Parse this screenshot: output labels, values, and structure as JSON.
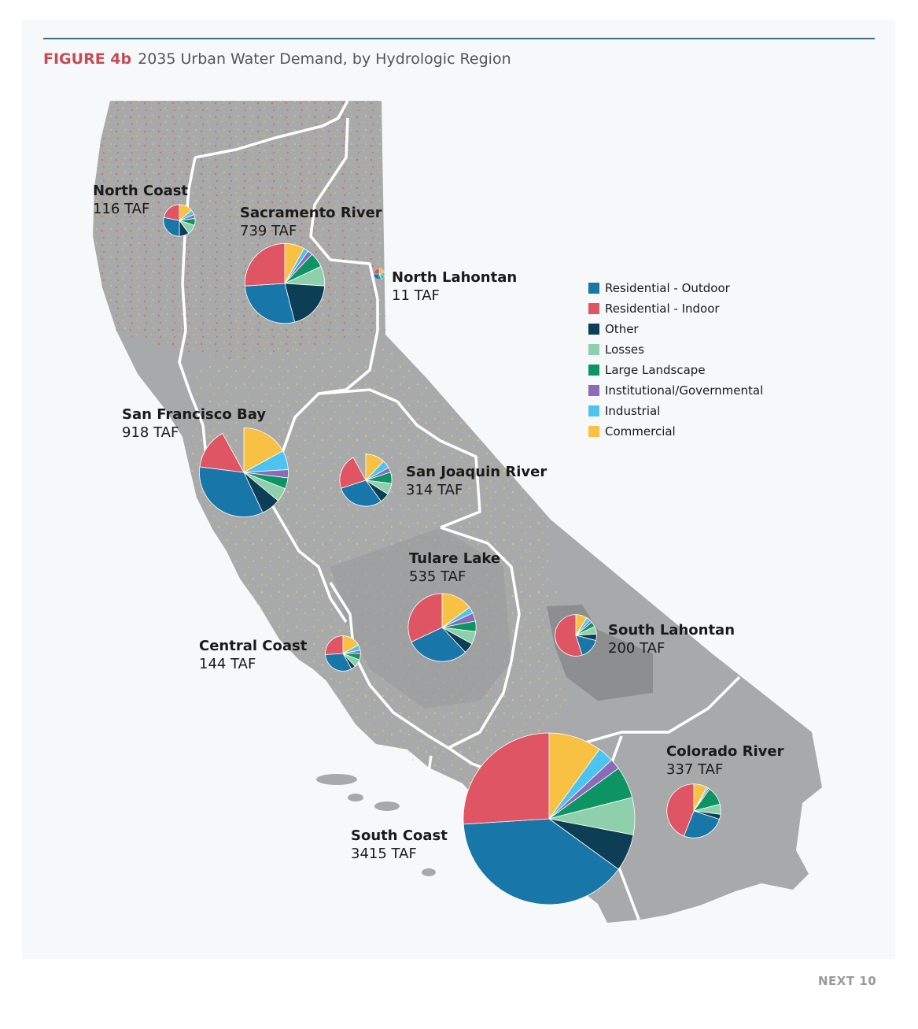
{
  "header": {
    "figure_number": "FIGURE 4b",
    "title": "2035 Urban Water Demand, by Hydrologic Region"
  },
  "footer": {
    "brand": "NEXT 10"
  },
  "legend": {
    "items": [
      {
        "label": "Residential - Outdoor",
        "color": "#1976a8"
      },
      {
        "label": "Residential - Indoor",
        "color": "#e05563"
      },
      {
        "label": "Other",
        "color": "#0c3e55"
      },
      {
        "label": "Losses",
        "color": "#8fd0ac"
      },
      {
        "label": "Large Landscape",
        "color": "#0e9464"
      },
      {
        "label": "Institutional/Governmental",
        "color": "#8b6bb8"
      },
      {
        "label": "Industrial",
        "color": "#4cc4ef"
      },
      {
        "label": "Commercial",
        "color": "#f8c143"
      }
    ]
  },
  "regions": [
    {
      "id": "north-coast",
      "name": "North Coast",
      "demand": "116 TAF",
      "shares": [
        0.28,
        0.22,
        0.1,
        0.1,
        0.07,
        0.04,
        0.05,
        0.14
      ]
    },
    {
      "id": "sacramento-river",
      "name": "Sacramento River",
      "demand": "739 TAF",
      "shares": [
        0.28,
        0.26,
        0.2,
        0.08,
        0.06,
        0.02,
        0.02,
        0.08
      ]
    },
    {
      "id": "north-lahontan",
      "name": "North Lahontan",
      "demand": "11 TAF",
      "shares": [
        0.25,
        0.25,
        0.05,
        0.05,
        0.05,
        0.05,
        0.1,
        0.2
      ]
    },
    {
      "id": "san-francisco-bay",
      "name": "San Francisco Bay",
      "demand": "918 TAF",
      "shares": [
        0.34,
        0.15,
        0.07,
        0.05,
        0.04,
        0.03,
        0.07,
        0.17
      ]
    },
    {
      "id": "san-joaquin-river",
      "name": "San Joaquin River",
      "demand": "314 TAF",
      "shares": [
        0.3,
        0.22,
        0.06,
        0.07,
        0.07,
        0.03,
        0.05,
        0.12
      ]
    },
    {
      "id": "tulare-lake",
      "name": "Tulare Lake",
      "demand": "535 TAF",
      "shares": [
        0.3,
        0.32,
        0.05,
        0.06,
        0.05,
        0.04,
        0.03,
        0.15
      ]
    },
    {
      "id": "south-lahontan",
      "name": "South Lahontan",
      "demand": "200 TAF",
      "shares": [
        0.16,
        0.55,
        0.05,
        0.06,
        0.04,
        0.02,
        0.03,
        0.09
      ]
    },
    {
      "id": "central-coast",
      "name": "Central Coast",
      "demand": "144 TAF",
      "shares": [
        0.32,
        0.26,
        0.04,
        0.07,
        0.06,
        0.03,
        0.05,
        0.17
      ]
    },
    {
      "id": "colorado-river",
      "name": "Colorado River",
      "demand": "337 TAF",
      "shares": [
        0.26,
        0.44,
        0.03,
        0.06,
        0.11,
        0.01,
        0.01,
        0.08
      ]
    },
    {
      "id": "south-coast",
      "name": "South Coast",
      "demand": "3415 TAF",
      "shares": [
        0.39,
        0.26,
        0.07,
        0.07,
        0.06,
        0.02,
        0.03,
        0.1
      ]
    }
  ]
}
